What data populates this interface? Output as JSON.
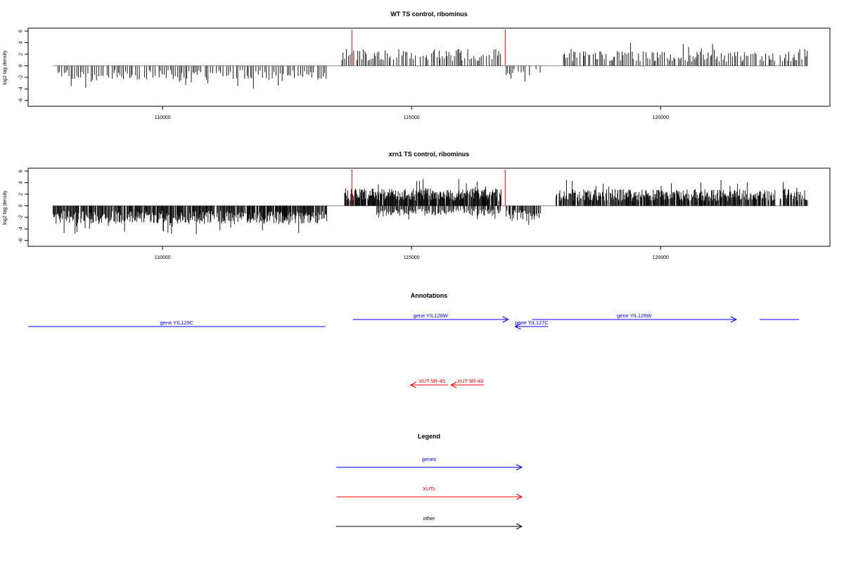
{
  "chart_data": [
    {
      "type": "bar",
      "title": "WT TS control, ribominus",
      "ylabel": "log2 tag density",
      "xlabel": "",
      "xlim": [
        107300,
        123400
      ],
      "ylim": [
        -7,
        6.5
      ],
      "xticks": [
        110000,
        115000,
        120000
      ],
      "xtick_labels": [
        "110000",
        "115000",
        "120000"
      ],
      "yticks": [
        -6,
        -4,
        -2,
        0,
        2,
        4,
        6
      ],
      "ytick_labels": [
        "-6",
        "-4",
        "-2",
        "0",
        "2",
        "4",
        "6"
      ],
      "markers": [
        113800,
        116880
      ],
      "marker_color": "#ff0000",
      "segments": [
        {
          "from": 107900,
          "to": 113300,
          "sign": -1,
          "step": 35,
          "amp": 2.0,
          "seed": 11
        },
        {
          "from": 113600,
          "to": 116800,
          "sign": 1,
          "step": 30,
          "amp": 2.3,
          "seed": 12
        },
        {
          "from": 116900,
          "to": 117600,
          "sign": -1,
          "step": 40,
          "amp": 1.4,
          "seed": 13
        },
        {
          "from": 118050,
          "to": 122300,
          "sign": 1,
          "step": 30,
          "amp": 2.0,
          "seed": 14
        },
        {
          "from": 122400,
          "to": 122950,
          "sign": 1,
          "step": 30,
          "amp": 2.3,
          "seed": 15
        }
      ],
      "baseline": [
        107800,
        122950
      ]
    },
    {
      "type": "bar",
      "title": "xrn1 TS control, ribominus",
      "ylabel": "log2 tag density",
      "xlabel": "",
      "xlim": [
        107300,
        123400
      ],
      "ylim": [
        -7,
        6.5
      ],
      "xticks": [
        110000,
        115000,
        120000
      ],
      "xtick_labels": [
        "110000",
        "115000",
        "120000"
      ],
      "yticks": [
        -6,
        -4,
        -2,
        0,
        2,
        4,
        6
      ],
      "ytick_labels": [
        "-6",
        "-4",
        "-2",
        "0",
        "2",
        "4",
        "6"
      ],
      "markers": [
        113800,
        116880
      ],
      "marker_color": "#ff0000",
      "segments": [
        {
          "from": 107800,
          "to": 113300,
          "sign": -1,
          "step": 12,
          "amp": 2.5,
          "seed": 21
        },
        {
          "from": 113650,
          "to": 116800,
          "sign": 1,
          "step": 10,
          "amp": 2.4,
          "seed": 22
        },
        {
          "from": 114300,
          "to": 116800,
          "sign": -1,
          "step": 18,
          "amp": 1.4,
          "seed": 23
        },
        {
          "from": 116900,
          "to": 117600,
          "sign": -1,
          "step": 15,
          "amp": 2.0,
          "seed": 24
        },
        {
          "from": 117900,
          "to": 122300,
          "sign": 1,
          "step": 12,
          "amp": 2.3,
          "seed": 25
        },
        {
          "from": 122400,
          "to": 122950,
          "sign": 1,
          "step": 14,
          "amp": 2.4,
          "seed": 26
        }
      ],
      "baseline": [
        107800,
        122950
      ]
    }
  ],
  "annotations": {
    "title": "Annotations",
    "genes_color": "#0000ff",
    "xuts_color": "#ff0000",
    "other_color": "#000000",
    "genes": [
      {
        "label": "gene YIL129C",
        "from": 107300,
        "to": 113270,
        "dir": "none"
      },
      {
        "label": "gene YIL128W",
        "from": 113820,
        "to": 116940,
        "dir": "right"
      },
      {
        "label": "gene YIL127C",
        "from": 117080,
        "to": 117740,
        "dir": "left"
      },
      {
        "label": "gene YIL126W",
        "from": 117420,
        "to": 121520,
        "dir": "right"
      },
      {
        "label": "",
        "from": 121990,
        "to": 122780,
        "dir": "none"
      }
    ],
    "xuts": [
      {
        "label": "XUT 9R-45",
        "from": 114980,
        "to": 115730,
        "dir": "left"
      },
      {
        "label": "XUT 9R-49",
        "from": 115790,
        "to": 116450,
        "dir": "left"
      }
    ]
  },
  "legend": {
    "title": "Legend",
    "items": [
      {
        "label": "genes",
        "color": "#0000ff"
      },
      {
        "label": "XUTs",
        "color": "#ff0000"
      },
      {
        "label": "other",
        "color": "#000000"
      }
    ]
  }
}
